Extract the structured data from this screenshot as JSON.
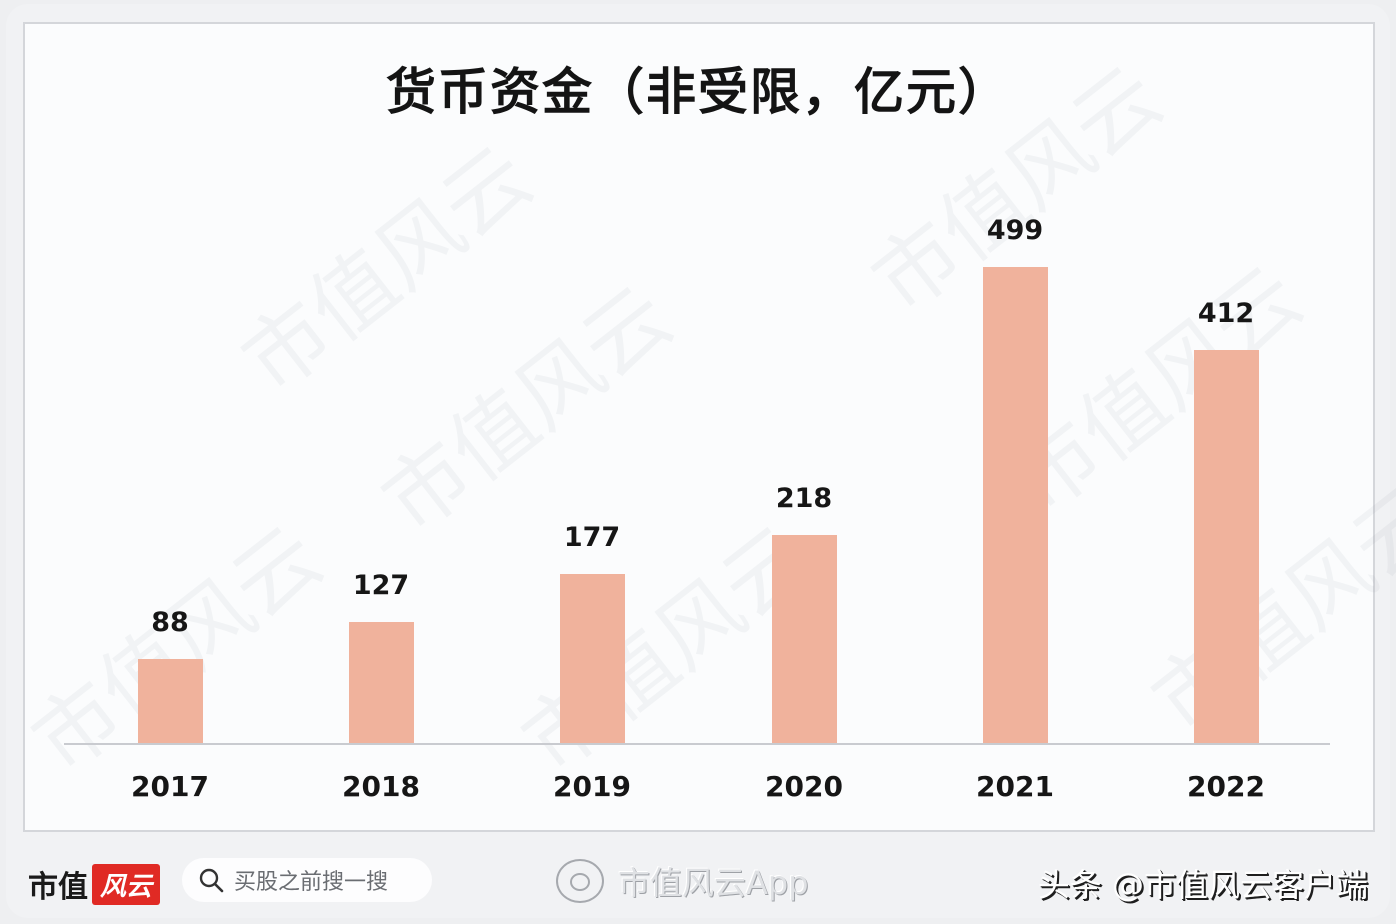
{
  "chart_data": {
    "type": "bar",
    "title": "货币资金（非受限，亿元）",
    "categories": [
      "2017",
      "2018",
      "2019",
      "2020",
      "2021",
      "2022"
    ],
    "values": [
      88,
      127,
      177,
      218,
      499,
      412
    ],
    "xlabel": "",
    "ylabel": "",
    "ylim": [
      0,
      550
    ],
    "grid": false,
    "legend": null,
    "bar_color": "#f0b29c",
    "data_labels": [
      "88",
      "127",
      "177",
      "218",
      "499",
      "412"
    ]
  },
  "watermark": "市值风云",
  "footer": {
    "brand_text": "市值",
    "brand_logo_text": "风云",
    "search_placeholder": "买股之前搜一搜",
    "app_label": "市值风云App",
    "credit": "头条 @市值风云客户端"
  },
  "icons": {
    "search": "search-icon",
    "weibo": "weibo-icon"
  }
}
